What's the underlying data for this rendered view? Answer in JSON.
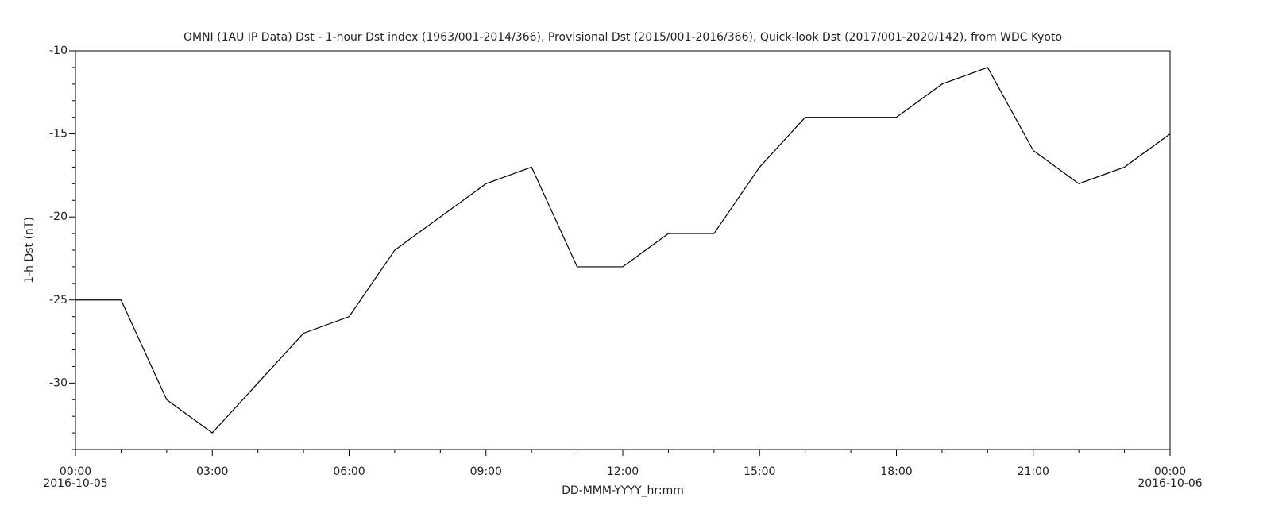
{
  "chart_data": {
    "type": "line",
    "title": "OMNI (1AU IP Data)  Dst - 1-hour Dst index (1963/001-2014/366), Provisional Dst (2015/001-2016/366), Quick-look Dst (2017/001-2020/142), from WDC Kyoto",
    "x_label": "DD-MMM-YYYY_hr:mm",
    "y_label": "1-h Dst (nT)",
    "x": [
      0,
      1,
      2,
      3,
      4,
      5,
      6,
      7,
      8,
      9,
      10,
      11,
      12,
      13,
      14,
      15,
      16,
      17,
      18,
      19,
      20,
      21,
      22,
      23,
      24
    ],
    "series": [
      {
        "name": "1-h Dst",
        "color": "#000000",
        "values": [
          -25,
          -25,
          -31,
          -33,
          -30,
          -27,
          -26,
          -22,
          -20,
          -18,
          -17,
          -23,
          -23,
          -21,
          -21,
          -17,
          -14,
          -14,
          -14,
          -12,
          -11,
          -16,
          -18,
          -17,
          -15
        ]
      }
    ],
    "xlim": [
      0,
      24
    ],
    "xticks": [
      {
        "value": 0,
        "label": "00:00"
      },
      {
        "value": 3,
        "label": "03:00"
      },
      {
        "value": 6,
        "label": "06:00"
      },
      {
        "value": 9,
        "label": "09:00"
      },
      {
        "value": 12,
        "label": "12:00"
      },
      {
        "value": 15,
        "label": "15:00"
      },
      {
        "value": 18,
        "label": "18:00"
      },
      {
        "value": 21,
        "label": "21:00"
      },
      {
        "value": 24,
        "label": "00:00"
      }
    ],
    "x_date_labels": [
      {
        "value": 0,
        "label": "2016-10-05"
      },
      {
        "value": 24,
        "label": "2016-10-06"
      }
    ],
    "xminorticks": [
      1,
      2,
      4,
      5,
      7,
      8,
      10,
      11,
      13,
      14,
      16,
      17,
      19,
      20,
      22,
      23
    ],
    "ylim": [
      -34,
      -10
    ],
    "yticks": [
      -30,
      -25,
      -20,
      -15,
      -10
    ],
    "yminorticks": [
      -34,
      -33,
      -32,
      -31,
      -29,
      -28,
      -27,
      -26,
      -24,
      -23,
      -22,
      -21,
      -19,
      -18,
      -17,
      -16,
      -14,
      -13,
      -12,
      -11
    ],
    "grid": false
  }
}
